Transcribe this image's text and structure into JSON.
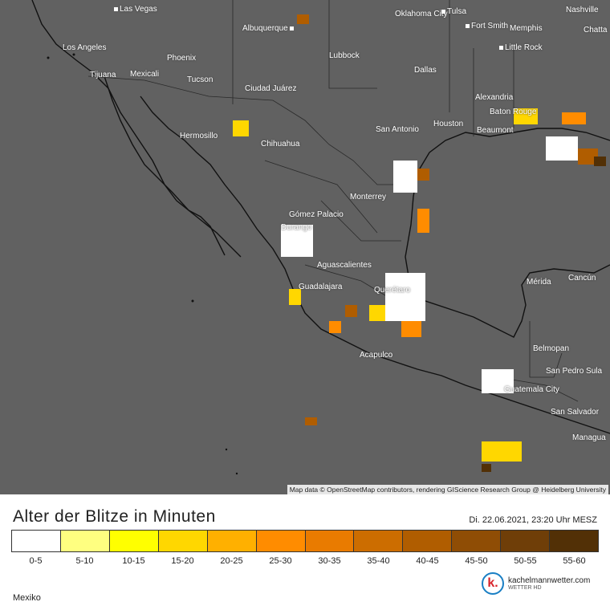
{
  "map": {
    "cities": [
      {
        "name": "Las Vegas"
      },
      {
        "name": "Albuquerque"
      },
      {
        "name": "Oklahoma City"
      },
      {
        "name": "Tulsa"
      },
      {
        "name": "Nashville"
      },
      {
        "name": "Fort Smith"
      },
      {
        "name": "Memphis"
      },
      {
        "name": "Chatta"
      },
      {
        "name": "Los Angeles"
      },
      {
        "name": "Phoenix"
      },
      {
        "name": "Lubbock"
      },
      {
        "name": "Little Rock"
      },
      {
        "name": "Tijuana"
      },
      {
        "name": "Mexicali"
      },
      {
        "name": "Tucson"
      },
      {
        "name": "Dallas"
      },
      {
        "name": "Ciudad Juárez"
      },
      {
        "name": "Alexandria"
      },
      {
        "name": "Baton Rouge"
      },
      {
        "name": "Hermosillo"
      },
      {
        "name": "San Antonio"
      },
      {
        "name": "Houston"
      },
      {
        "name": "Beaumont"
      },
      {
        "name": "Chihuahua"
      },
      {
        "name": "Monterrey"
      },
      {
        "name": "Gómez Palacio"
      },
      {
        "name": "Durango"
      },
      {
        "name": "Aguascalientes"
      },
      {
        "name": "Guadalajara"
      },
      {
        "name": "Querétaro"
      },
      {
        "name": "Mérida"
      },
      {
        "name": "Cancún"
      },
      {
        "name": "Acapulco"
      },
      {
        "name": "Belmopan"
      },
      {
        "name": "San Pedro Sula"
      },
      {
        "name": "Guatemala City"
      },
      {
        "name": "San Salvador"
      },
      {
        "name": "Managua"
      }
    ],
    "attribution": "Map data © OpenStreetMap contributors, rendering GIScience Research Group @ Heidelberg University"
  },
  "legend": {
    "title": "Alter der Blitze in Minuten",
    "timestamp": "Di. 22.06.2021, 23:20 Uhr MESZ",
    "bins": [
      {
        "label": "0-5",
        "color": "#ffffff"
      },
      {
        "label": "5-10",
        "color": "#ffff80"
      },
      {
        "label": "10-15",
        "color": "#ffff00"
      },
      {
        "label": "15-20",
        "color": "#ffd700"
      },
      {
        "label": "20-25",
        "color": "#ffb000"
      },
      {
        "label": "25-30",
        "color": "#ff8c00"
      },
      {
        "label": "30-35",
        "color": "#e97b00"
      },
      {
        "label": "35-40",
        "color": "#cc6d00"
      },
      {
        "label": "40-45",
        "color": "#b05d00"
      },
      {
        "label": "45-50",
        "color": "#8f4d05"
      },
      {
        "label": "50-55",
        "color": "#6f3e08"
      },
      {
        "label": "55-60",
        "color": "#523006"
      }
    ]
  },
  "region": "Mexiko",
  "brand": {
    "name": "kachelmannwetter.com",
    "sub": "WETTER HD",
    "logo_letter": "k."
  }
}
